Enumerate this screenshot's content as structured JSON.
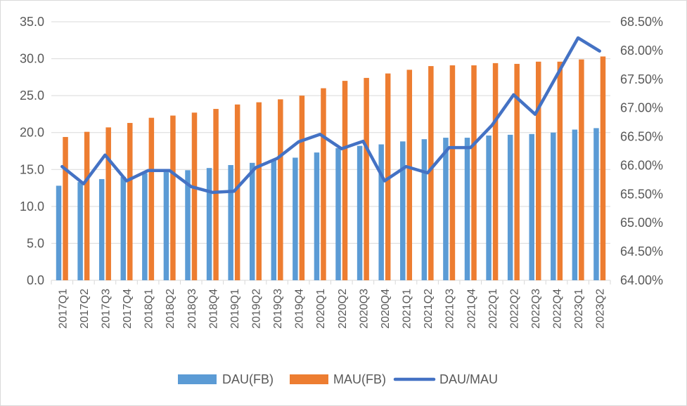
{
  "chart_data": {
    "type": "bar",
    "categories": [
      "2017Q1",
      "2017Q2",
      "2017Q3",
      "2017Q4",
      "2018Q1",
      "2018Q2",
      "2018Q3",
      "2018Q4",
      "2019Q1",
      "2019Q2",
      "2019Q3",
      "2019Q4",
      "2020Q1",
      "2020Q2",
      "2020Q3",
      "2020Q4",
      "2021Q1",
      "2021Q2",
      "2021Q3",
      "2021Q4",
      "2022Q1",
      "2022Q2",
      "2022Q3",
      "2022Q4",
      "2023Q1",
      "2023Q2"
    ],
    "series": [
      {
        "name": "DAU(FB)",
        "type": "bar",
        "axis": "left",
        "values": [
          12.8,
          13.3,
          13.7,
          14.0,
          14.5,
          14.7,
          14.9,
          15.2,
          15.6,
          15.9,
          16.2,
          16.6,
          17.3,
          17.9,
          18.2,
          18.4,
          18.8,
          19.1,
          19.3,
          19.3,
          19.6,
          19.7,
          19.8,
          20.0,
          20.4,
          20.6
        ]
      },
      {
        "name": "MAU(FB)",
        "type": "bar",
        "axis": "left",
        "values": [
          19.4,
          20.1,
          20.7,
          21.3,
          22.0,
          22.3,
          22.7,
          23.2,
          23.8,
          24.1,
          24.5,
          25.0,
          26.0,
          27.0,
          27.4,
          28.0,
          28.5,
          29.0,
          29.1,
          29.1,
          29.4,
          29.3,
          29.6,
          29.6,
          29.9,
          30.3
        ]
      },
      {
        "name": "DAU/MAU",
        "type": "line",
        "axis": "right",
        "values": [
          65.98,
          65.68,
          66.18,
          65.73,
          65.91,
          65.91,
          65.63,
          65.53,
          65.55,
          65.96,
          66.12,
          66.41,
          66.54,
          66.29,
          66.42,
          65.73,
          65.98,
          65.87,
          66.31,
          66.31,
          66.7,
          67.23,
          66.89,
          67.56,
          68.22,
          67.99
        ]
      }
    ],
    "left_axis": {
      "ylim": [
        0,
        35
      ],
      "ticks": [
        "0.0",
        "5.0",
        "10.0",
        "15.0",
        "20.0",
        "25.0",
        "30.0",
        "35.0"
      ]
    },
    "right_axis": {
      "ylim": [
        64,
        68.5
      ],
      "ticks": [
        "64.00%",
        "64.50%",
        "65.00%",
        "65.50%",
        "66.00%",
        "66.50%",
        "67.00%",
        "67.50%",
        "68.00%",
        "68.50%"
      ]
    },
    "grid": "horizontal",
    "legend_position": "bottom",
    "colors": {
      "DAU(FB)": "#5b9bd5",
      "MAU(FB)": "#ed7d31",
      "DAU/MAU": "#4472c4",
      "grid": "#d9d9d9",
      "text": "#595959"
    }
  }
}
